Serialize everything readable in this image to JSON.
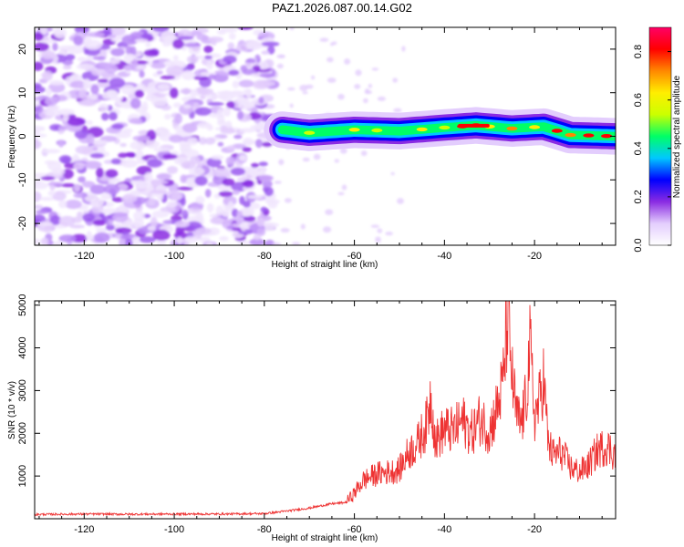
{
  "figure_title": "PAZ1.2026.087.00.14.G02",
  "chart_data": [
    {
      "type": "heatmap",
      "xlabel": "Height of straight line (km)",
      "ylabel": "Frequency (Hz)",
      "xlim": [
        -131,
        -2
      ],
      "ylim": [
        -25,
        25
      ],
      "xticks": [
        -120,
        -100,
        -80,
        -60,
        -40,
        -20
      ],
      "yticks": [
        -20,
        -10,
        0,
        10,
        20
      ],
      "colorbar": {
        "label": "Normalized spectral amplitude",
        "range": [
          0,
          0.9
        ],
        "ticks": [
          0.0,
          0.2,
          0.4,
          0.6,
          0.8
        ],
        "tick_labels": [
          "0.0",
          "0.2",
          "0.4",
          "0.6",
          "0.8"
        ],
        "colors": [
          "#ffffff",
          "#e3cdfd",
          "#8a2be2",
          "#0000ff",
          "#00c8ff",
          "#00ff66",
          "#ccff00",
          "#ffee00",
          "#ff8800",
          "#ff0000",
          "#ff0066"
        ]
      },
      "signal_track": [
        {
          "x": -76,
          "freq": 1.5
        },
        {
          "x": -70,
          "freq": 0.8
        },
        {
          "x": -60,
          "freq": 1.5
        },
        {
          "x": -50,
          "freq": 1.2
        },
        {
          "x": -40,
          "freq": 2.0
        },
        {
          "x": -33,
          "freq": 2.5
        },
        {
          "x": -25,
          "freq": 1.8
        },
        {
          "x": -18,
          "freq": 2.2
        },
        {
          "x": -12,
          "freq": 0.3
        },
        {
          "x": -2,
          "freq": 0.0
        }
      ],
      "noise_region_x": [
        -131,
        -78
      ]
    },
    {
      "type": "line",
      "xlabel": "Height of straight line (km)",
      "ylabel": "SNR (10 * v/v)",
      "xlim": [
        -131,
        -2
      ],
      "ylim": [
        0,
        5100
      ],
      "xticks": [
        -120,
        -100,
        -80,
        -60,
        -40,
        -20
      ],
      "yticks": [
        1000,
        2000,
        3000,
        4000,
        5000
      ],
      "line_color": "#ee3333",
      "series": [
        {
          "name": "SNR",
          "x": [
            -131,
            -120,
            -110,
            -100,
            -90,
            -80,
            -75,
            -70,
            -65,
            -62,
            -60,
            -58,
            -55,
            -52,
            -50,
            -48,
            -46,
            -44,
            -43,
            -42,
            -40,
            -38,
            -36,
            -34,
            -32,
            -30,
            -28,
            -27,
            -26,
            -25,
            -24,
            -23,
            -22,
            -21,
            -20,
            -19,
            -18,
            -17,
            -16,
            -14,
            -12,
            -10,
            -8,
            -6,
            -4,
            -2
          ],
          "values": [
            100,
            110,
            105,
            110,
            110,
            120,
            180,
            250,
            350,
            380,
            600,
            900,
            1050,
            1100,
            1150,
            1550,
            1750,
            2200,
            2900,
            1800,
            2100,
            2050,
            2300,
            2000,
            2350,
            2050,
            2700,
            3200,
            4800,
            3300,
            2400,
            2200,
            2700,
            4000,
            2400,
            2700,
            3300,
            1800,
            1500,
            1550,
            1200,
            1100,
            1250,
            1600,
            1700,
            1500
          ]
        }
      ]
    }
  ]
}
